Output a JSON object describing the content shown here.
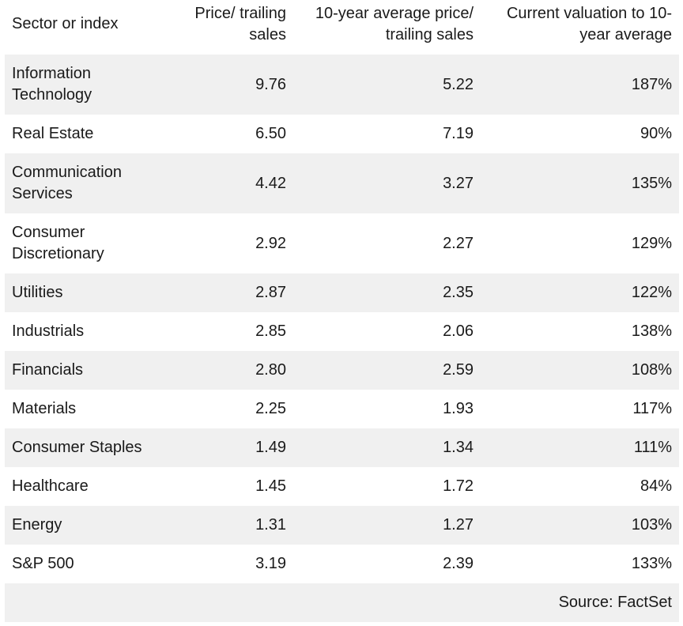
{
  "headers": {
    "sector": "Sector or index",
    "price_sales": "Price/ trailing sales",
    "avg_price_sales": "10-year average price/ trailing sales",
    "current_vs_avg": "Current valuation to 10-year average"
  },
  "rows": [
    {
      "sector": "Information Technology",
      "price_sales": "9.76",
      "avg": "5.22",
      "ratio": "187%"
    },
    {
      "sector": "Real Estate",
      "price_sales": "6.50",
      "avg": "7.19",
      "ratio": "90%"
    },
    {
      "sector": "Communication Services",
      "price_sales": "4.42",
      "avg": "3.27",
      "ratio": "135%"
    },
    {
      "sector": "Consumer Discretionary",
      "price_sales": "2.92",
      "avg": "2.27",
      "ratio": "129%"
    },
    {
      "sector": "Utilities",
      "price_sales": "2.87",
      "avg": "2.35",
      "ratio": "122%"
    },
    {
      "sector": "Industrials",
      "price_sales": "2.85",
      "avg": "2.06",
      "ratio": "138%"
    },
    {
      "sector": "Financials",
      "price_sales": "2.80",
      "avg": "2.59",
      "ratio": "108%"
    },
    {
      "sector": "Materials",
      "price_sales": "2.25",
      "avg": "1.93",
      "ratio": "117%"
    },
    {
      "sector": "Consumer Staples",
      "price_sales": "1.49",
      "avg": "1.34",
      "ratio": "111%"
    },
    {
      "sector": "Healthcare",
      "price_sales": "1.45",
      "avg": "1.72",
      "ratio": "84%"
    },
    {
      "sector": "Energy",
      "price_sales": "1.31",
      "avg": "1.27",
      "ratio": "103%"
    },
    {
      "sector": "S&P 500",
      "price_sales": "3.19",
      "avg": "2.39",
      "ratio": "133%"
    }
  ],
  "source": "Source: FactSet",
  "colors": {
    "shade": "#f0f0f0",
    "text": "#1a1a1a"
  }
}
